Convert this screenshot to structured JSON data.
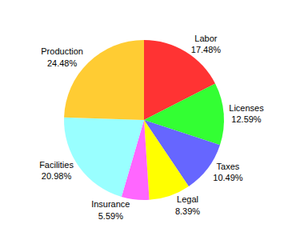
{
  "chart_data": {
    "type": "pie",
    "categories": [
      "Labor",
      "Licenses",
      "Taxes",
      "Legal",
      "Insurance",
      "Facilities",
      "Production"
    ],
    "values": [
      17.48,
      12.59,
      10.49,
      8.39,
      5.59,
      20.98,
      24.48
    ],
    "value_labels": [
      "17.48%",
      "12.59%",
      "10.49%",
      "8.39%",
      "5.59%",
      "20.98%",
      "24.48%"
    ],
    "colors": [
      "#ff3333",
      "#33ff33",
      "#6666ff",
      "#ffff00",
      "#ff66ff",
      "#99ffff",
      "#ffcc33"
    ],
    "data_labels": true
  }
}
